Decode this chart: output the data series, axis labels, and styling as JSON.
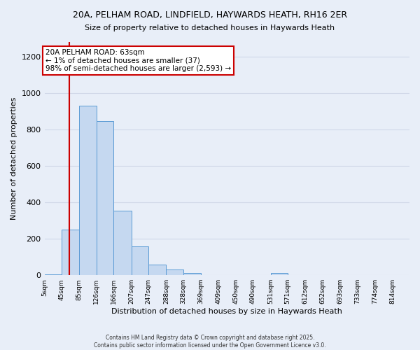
{
  "title1": "20A, PELHAM ROAD, LINDFIELD, HAYWARDS HEATH, RH16 2ER",
  "title2": "Size of property relative to detached houses in Haywards Heath",
  "xlabel": "Distribution of detached houses by size in Haywards Heath",
  "ylabel": "Number of detached properties",
  "bin_edges": [
    5,
    45,
    85,
    126,
    166,
    207,
    247,
    288,
    328,
    369,
    409,
    450,
    490,
    531,
    571,
    612,
    652,
    693,
    733,
    774,
    814
  ],
  "bar_heights": [
    3,
    250,
    930,
    845,
    355,
    160,
    60,
    30,
    14,
    0,
    0,
    0,
    0,
    14,
    0,
    0,
    0,
    0,
    0,
    0
  ],
  "bar_color": "#c5d8f0",
  "bar_edge_color": "#5b9bd5",
  "property_size": 63,
  "red_line_color": "#cc0000",
  "annotation_text": "20A PELHAM ROAD: 63sqm\n← 1% of detached houses are smaller (37)\n98% of semi-detached houses are larger (2,593) →",
  "annotation_box_color": "#ffffff",
  "annotation_box_edge_color": "#cc0000",
  "ylim": [
    0,
    1280
  ],
  "yticks": [
    0,
    200,
    400,
    600,
    800,
    1000,
    1200
  ],
  "background_color": "#e8eef8",
  "grid_color": "#d0d8e8",
  "footer1": "Contains HM Land Registry data © Crown copyright and database right 2025.",
  "footer2": "Contains public sector information licensed under the Open Government Licence v3.0."
}
